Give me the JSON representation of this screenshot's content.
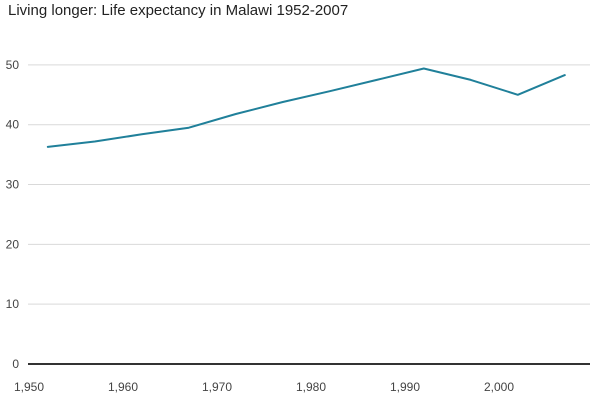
{
  "chart_data": {
    "type": "line",
    "title": "Living longer: Life expectancy in Malawi 1952-2007",
    "xlabel": "",
    "ylabel": "",
    "x": [
      1952,
      1957,
      1962,
      1967,
      1972,
      1977,
      1982,
      1987,
      1992,
      1997,
      2002,
      2007
    ],
    "series": [
      {
        "values": [
          36.3,
          37.2,
          38.4,
          39.5,
          41.8,
          43.8,
          45.6,
          47.5,
          49.4,
          47.5,
          45.0,
          48.3
        ]
      }
    ],
    "xlim": [
      1950,
      2010
    ],
    "ylim": [
      0,
      55
    ],
    "x_ticks": [
      1950,
      1960,
      1970,
      1980,
      1990,
      2000
    ],
    "x_tick_labels": [
      "1,950",
      "1,960",
      "1,970",
      "1,980",
      "1,990",
      "2,000"
    ],
    "y_ticks": [
      0,
      10,
      20,
      30,
      40,
      50
    ],
    "y_tick_labels": [
      "0",
      "10",
      "20",
      "30",
      "40",
      "50"
    ],
    "grid": true,
    "colors": {
      "line": "#20809a",
      "grid": "#d9d9d9",
      "baseline": "#333333"
    }
  }
}
